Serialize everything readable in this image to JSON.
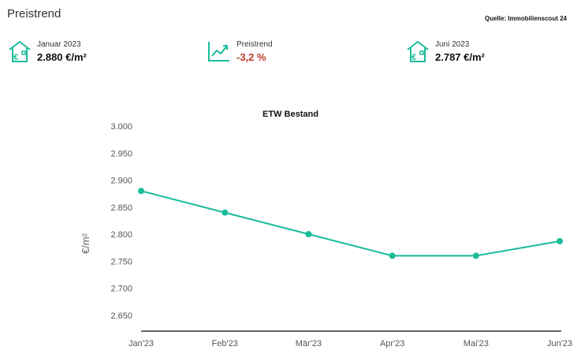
{
  "header": {
    "title": "Preistrend",
    "source": "Quelle: Immobilienscout 24"
  },
  "kpis": [
    {
      "icon": "house-euro-icon",
      "label": "Januar 2023",
      "value": "2.880 €/m²"
    },
    {
      "icon": "trend-chart-icon",
      "label": "Preistrend",
      "value": "-3,2 %"
    },
    {
      "icon": "house-euro-icon",
      "label": "Juni 2023",
      "value": "2.787 €/m²"
    }
  ],
  "colors": {
    "accent": "#1abc9c",
    "negative": "#c0392b"
  },
  "chart_data": {
    "type": "line",
    "title": "ETW Bestand",
    "xlabel": "",
    "ylabel": "€/m²",
    "categories": [
      "Jan'23",
      "Feb'23",
      "Mär'23",
      "Apr'23",
      "Mai'23",
      "Jun'23"
    ],
    "series": [
      {
        "values": [
          2880,
          2840,
          2800,
          2760,
          2760,
          2787
        ]
      }
    ],
    "yticks": [
      "3.000",
      "2.950",
      "2.900",
      "2.850",
      "2.800",
      "2.750",
      "2.700",
      "2.650"
    ],
    "ylim": [
      2620,
      3000
    ],
    "grid": false,
    "legend": "none"
  }
}
